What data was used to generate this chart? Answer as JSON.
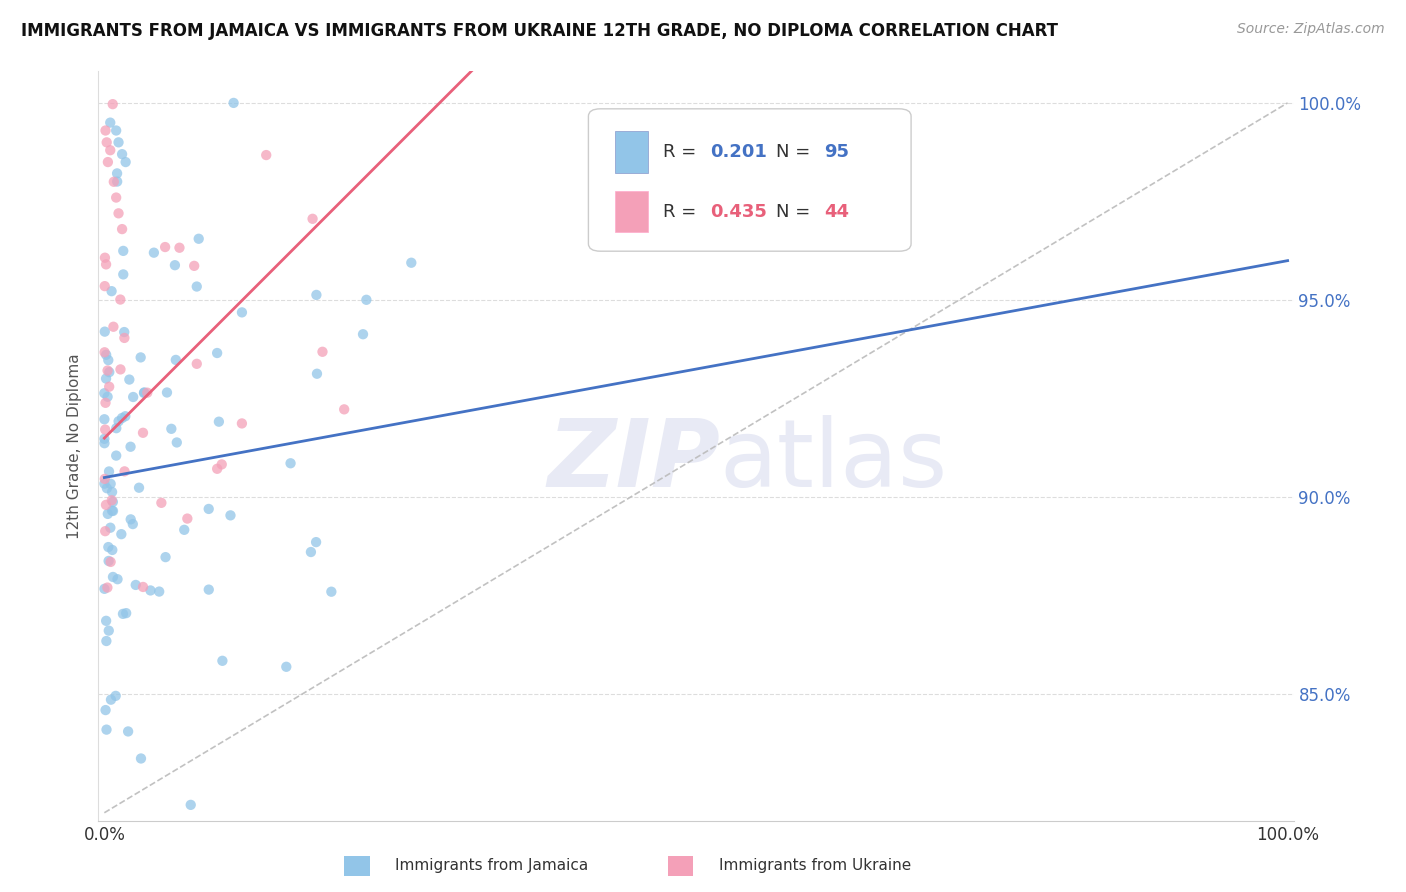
{
  "title": "IMMIGRANTS FROM JAMAICA VS IMMIGRANTS FROM UKRAINE 12TH GRADE, NO DIPLOMA CORRELATION CHART",
  "source": "Source: ZipAtlas.com",
  "ylabel_label": "12th Grade, No Diploma",
  "legend_jamaica": "Immigrants from Jamaica",
  "legend_ukraine": "Immigrants from Ukraine",
  "R_jamaica": 0.201,
  "N_jamaica": 95,
  "R_ukraine": 0.435,
  "N_ukraine": 44,
  "color_jamaica": "#92C5E8",
  "color_ukraine": "#F4A0B8",
  "color_jamaica_line": "#4472C4",
  "color_ukraine_line": "#E8607A",
  "color_diagonal": "#BBBBBB",
  "watermark_color": "#E8EAF5",
  "ytick_color": "#4472C4",
  "title_fontsize": 12,
  "source_fontsize": 10,
  "legend_R_color": "#333333",
  "legend_box_edge": "#AAAAAA"
}
